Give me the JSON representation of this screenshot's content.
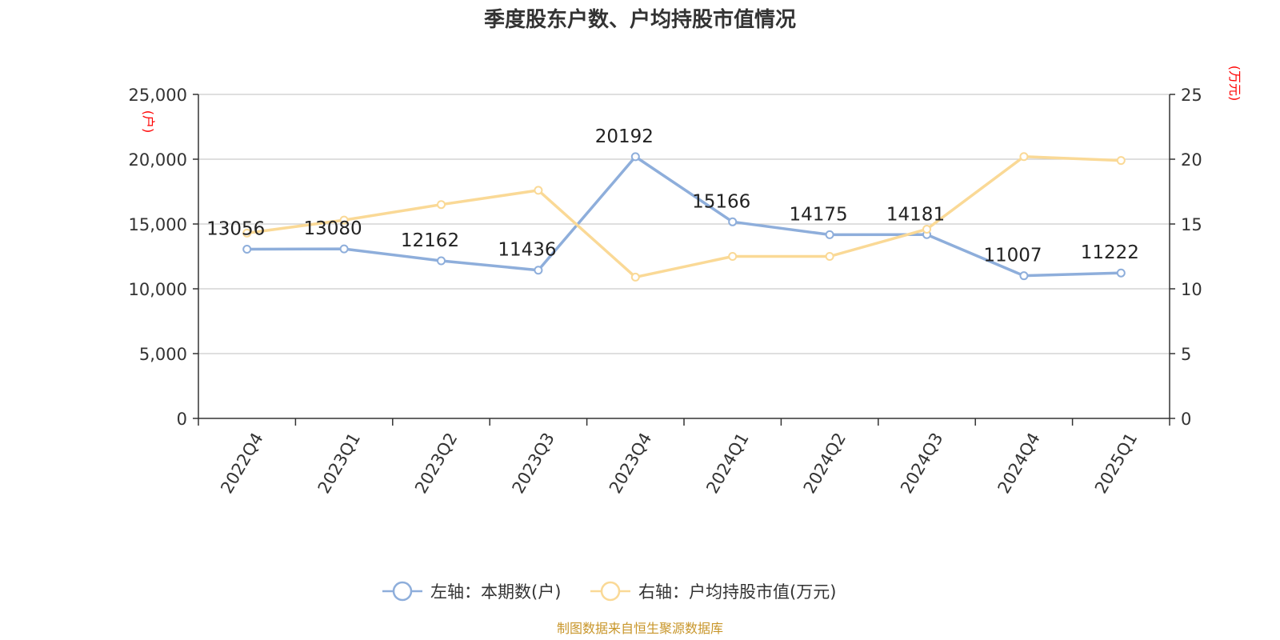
{
  "title": "季度股东户数、户均持股市值情况",
  "source": "制图数据来自恒生聚源数据库",
  "colors": {
    "left_series": "#8eaedb",
    "right_series": "#fad996",
    "unit_text": "#ff0000",
    "source_text": "#c8962a"
  },
  "chart_data": {
    "type": "line",
    "title": "季度股东户数、户均持股市值情况",
    "categories": [
      "2022Q4",
      "2023Q1",
      "2023Q2",
      "2023Q3",
      "2023Q4",
      "2024Q1",
      "2024Q2",
      "2024Q3",
      "2024Q4",
      "2025Q1"
    ],
    "left_axis": {
      "unit": "(户)",
      "ylim": [
        0,
        25000
      ],
      "ticks": [
        0,
        5000,
        10000,
        15000,
        20000,
        25000
      ],
      "tick_labels": [
        "0",
        "5,000",
        "10,000",
        "15,000",
        "20,000",
        "25,000"
      ]
    },
    "right_axis": {
      "unit": "(万元)",
      "ylim": [
        0,
        25
      ],
      "ticks": [
        0,
        5,
        10,
        15,
        20,
        25
      ],
      "tick_labels": [
        "0",
        "5",
        "10",
        "15",
        "20",
        "25"
      ]
    },
    "series": [
      {
        "name": "左轴：本期数(户)",
        "axis": "left",
        "values": [
          13056,
          13080,
          12162,
          11436,
          20192,
          15166,
          14175,
          14181,
          11007,
          11222
        ],
        "labels": [
          "13056",
          "13080",
          "12162",
          "11436",
          "20192",
          "15166",
          "14175",
          "14181",
          "11007",
          "11222"
        ]
      },
      {
        "name": "右轴：户均持股市值(万元)",
        "axis": "right",
        "values": [
          14.3,
          15.3,
          16.5,
          17.6,
          10.9,
          12.5,
          12.5,
          14.6,
          20.2,
          19.9
        ]
      }
    ],
    "grid": true,
    "legend_position": "bottom-center"
  }
}
